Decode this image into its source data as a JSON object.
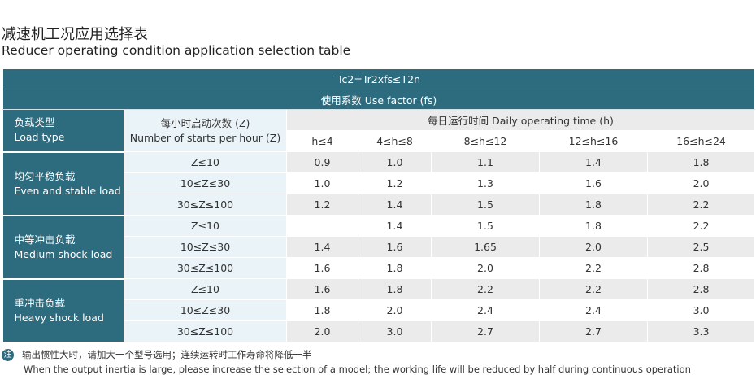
{
  "title_cn": "减速机工况应用选择表",
  "title_en": "Reducer operating condition application selection table",
  "formula": "Tc2=Tr2xfs≤T2n",
  "use_factor": "使用系数 Use factor (fs)",
  "load_type_cn": "负载类型",
  "load_type_en": "Load type",
  "starts_cn": "每小时启动次数 (Z)",
  "starts_en": "Number of starts per hour (Z)",
  "daily_time": "每日运行时间 Daily operating time (h)",
  "hours": [
    "h≤4",
    "4≤h≤8",
    "8≤h≤12",
    "12≤h≤16",
    "16≤h≤24"
  ],
  "groups": [
    {
      "cn": "均匀平稳负载",
      "en": "Even and stable load",
      "rows": [
        {
          "z": "Z≤10",
          "v": [
            "0.9",
            "1.0",
            "1.1",
            "1.4",
            "1.8"
          ]
        },
        {
          "z": "10≤Z≤30",
          "v": [
            "1.0",
            "1.2",
            "1.3",
            "1.6",
            "2.0"
          ]
        },
        {
          "z": "30≤Z≤100",
          "v": [
            "1.2",
            "1.4",
            "1.5",
            "1.8",
            "2.2"
          ]
        }
      ]
    },
    {
      "cn": "中等冲击负载",
      "en": "Medium shock load",
      "rows": [
        {
          "z": "Z≤10",
          "v": [
            "",
            "1.4",
            "1.5",
            "1.8",
            "2.2"
          ]
        },
        {
          "z": "10≤Z≤30",
          "v": [
            "1.4",
            "1.6",
            "1.65",
            "2.0",
            "2.5"
          ]
        },
        {
          "z": "30≤Z≤100",
          "v": [
            "1.6",
            "1.8",
            "2.0",
            "2.2",
            "2.8"
          ]
        }
      ]
    },
    {
      "cn": "重冲击负载",
      "en": "Heavy shock load",
      "rows": [
        {
          "z": "Z≤10",
          "v": [
            "1.6",
            "1.8",
            "2.2",
            "2.2",
            "2.8"
          ]
        },
        {
          "z": "10≤Z≤30",
          "v": [
            "1.8",
            "2.0",
            "2.4",
            "2.4",
            "3.0"
          ]
        },
        {
          "z": "30≤Z≤100",
          "v": [
            "2.0",
            "3.0",
            "2.7",
            "2.7",
            "3.3"
          ]
        }
      ]
    }
  ],
  "note_icon": "注",
  "note_cn": "输出惯性大时，请加大一个型号选用；连续运转时工作寿命将降低一半",
  "note_en": "When the output inertia is large, please increase the selection of a model; the working life will be reduced by half during continuous operation"
}
